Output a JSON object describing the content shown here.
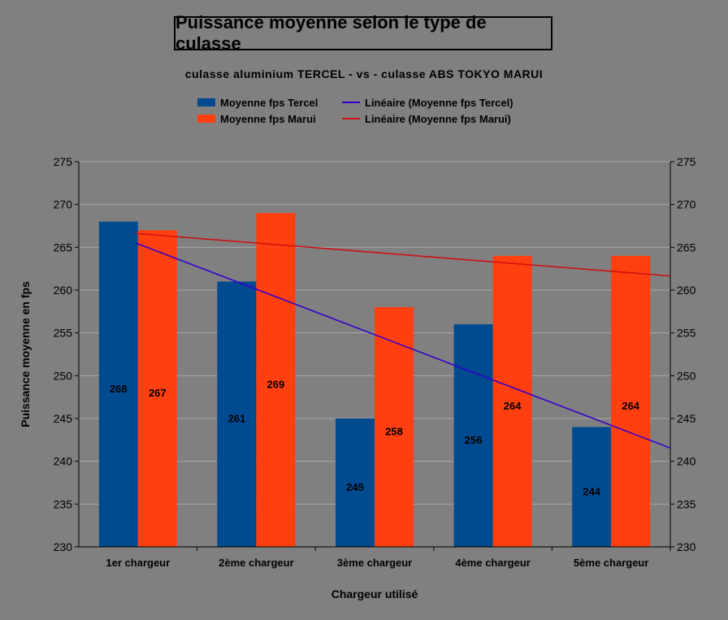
{
  "chart_data": {
    "type": "bar",
    "title": "Puissance moyenne selon le type de culasse",
    "subtitle": "culasse aluminium TERCEL - vs - culasse ABS TOKYO MARUI",
    "xlabel": "Chargeur utilisé",
    "ylabel": "Puissance moyenne en fps",
    "ylim": [
      230,
      275
    ],
    "ytick_step": 5,
    "yticks": [
      "230",
      "235",
      "240",
      "245",
      "250",
      "255",
      "260",
      "265",
      "270",
      "275"
    ],
    "grid": true,
    "categories": [
      "1er chargeur",
      "2ème chargeur",
      "3ème chargeur",
      "4ème chargeur",
      "5ème chargeur"
    ],
    "series": [
      {
        "name": "Moyenne fps Tercel",
        "color": "#004a8f",
        "values": [
          268,
          261,
          245,
          256,
          244
        ],
        "labels": [
          "268",
          "261",
          "245",
          "256",
          "244"
        ]
      },
      {
        "name": "Moyenne fps Marui",
        "color": "#ff3f0f",
        "values": [
          267,
          269,
          258,
          264,
          264
        ],
        "labels": [
          "267",
          "269",
          "258",
          "264",
          "264"
        ]
      }
    ],
    "trendlines": [
      {
        "name": "Linéaire (Moyenne fps Tercel)",
        "color": "#3300cc",
        "of_series": 0
      },
      {
        "name": "Linéaire (Moyenne fps Marui)",
        "color": "#cc1111",
        "of_series": 1
      }
    ],
    "legend_position": "top"
  }
}
